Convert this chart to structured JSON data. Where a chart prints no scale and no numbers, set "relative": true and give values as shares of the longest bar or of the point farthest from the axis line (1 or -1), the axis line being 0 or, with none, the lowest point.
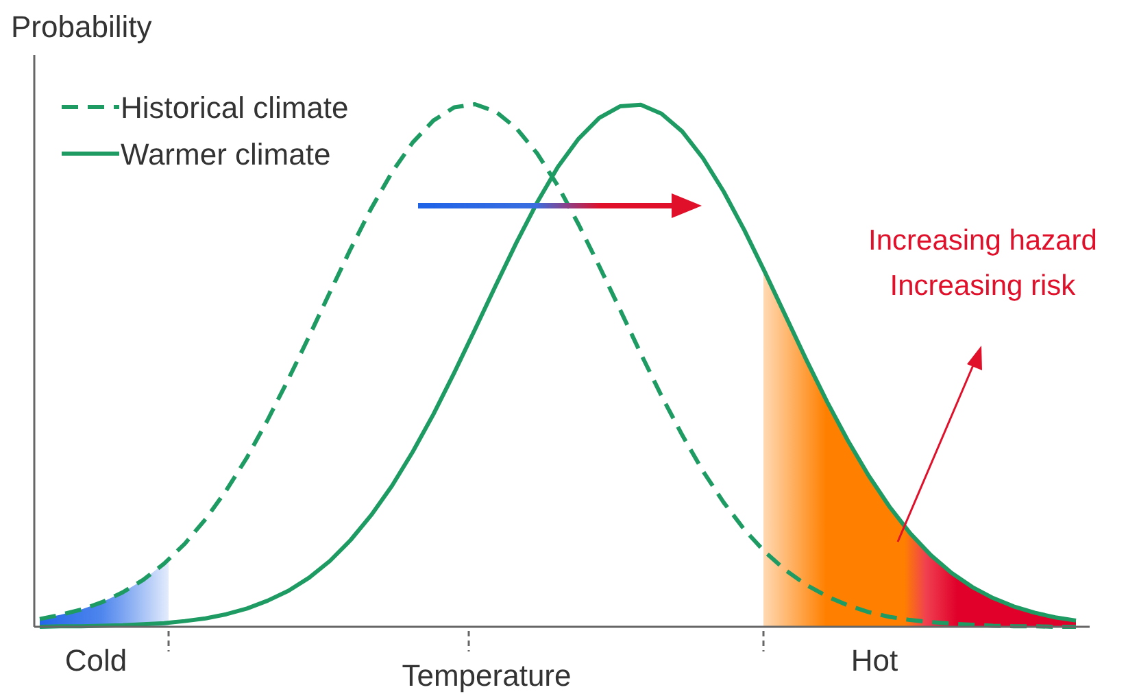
{
  "chart_data": {
    "type": "line",
    "relative": true,
    "ylabel": "Probability",
    "xlabel": "Temperature",
    "legend": "top left",
    "categories": [
      null,
      null,
      null,
      null,
      null,
      null,
      null,
      null,
      null,
      null,
      null,
      null,
      null,
      null,
      null,
      null,
      null,
      null,
      null,
      null,
      null,
      null,
      null,
      null,
      null,
      null,
      null,
      null,
      null,
      null,
      null,
      null,
      null,
      null,
      null,
      null,
      null,
      null,
      null,
      null,
      null,
      null,
      null,
      null,
      null,
      null,
      null,
      null,
      null,
      null,
      null
    ],
    "series": [
      {
        "name": "Historical climate",
        "color": "#1e9b63",
        "line_style": "dashed",
        "values": [
          0.015,
          0.023,
          0.033,
          0.047,
          0.066,
          0.09,
          0.121,
          0.159,
          0.206,
          0.261,
          0.324,
          0.396,
          0.474,
          0.556,
          0.64,
          0.723,
          0.801,
          0.87,
          0.927,
          0.969,
          0.994,
          1,
          0.986,
          0.954,
          0.906,
          0.844,
          0.77,
          0.69,
          0.607,
          0.523,
          0.442,
          0.367,
          0.298,
          0.238,
          0.186,
          0.143,
          0.108,
          0.08,
          0.058,
          0.041,
          0.028,
          0.019,
          0.013,
          0.009,
          0.006,
          0.004,
          0.002,
          0.001,
          0.001,
          0,
          0
        ]
      },
      {
        "name": "Warmer climate",
        "color": "#1e9b63",
        "line_style": "solid",
        "values": [
          0,
          0.001,
          0.001,
          0.002,
          0.003,
          0.005,
          0.007,
          0.011,
          0.016,
          0.024,
          0.035,
          0.05,
          0.069,
          0.094,
          0.126,
          0.166,
          0.214,
          0.27,
          0.335,
          0.407,
          0.486,
          0.569,
          0.653,
          0.735,
          0.812,
          0.88,
          0.934,
          0.974,
          0.996,
          0.999,
          0.982,
          0.948,
          0.897,
          0.833,
          0.759,
          0.678,
          0.594,
          0.51,
          0.43,
          0.356,
          0.289,
          0.23,
          0.179,
          0.137,
          0.103,
          0.076,
          0.055,
          0.039,
          0.027,
          0.018,
          0.012
        ]
      }
    ],
    "annotations": [
      "Cold",
      "Hot",
      "Increasing hazard",
      "Increasing risk"
    ]
  }
}
